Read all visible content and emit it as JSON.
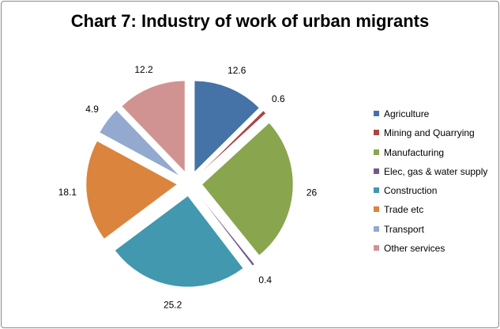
{
  "chart_data": {
    "type": "pie",
    "title": "Chart 7: Industry of work of urban migrants",
    "exploded": true,
    "legend_position": "right",
    "categories": [
      "Agriculture",
      "Mining and Quarrying",
      "Manufacturing",
      "Elec, gas & water supply",
      "Construction",
      "Trade etc",
      "Transport",
      "Other services"
    ],
    "values": [
      12.6,
      0.6,
      26,
      0.4,
      25.2,
      18.1,
      4.9,
      12.2
    ],
    "value_labels": [
      "12.6",
      "0.6",
      "26",
      "0.4",
      "25.2",
      "18.1",
      "4.9",
      "12.2"
    ],
    "colors": [
      "#4573a7",
      "#aa4643",
      "#89a54e",
      "#71588f",
      "#4198af",
      "#db843d",
      "#93a9cf",
      "#d19392"
    ]
  }
}
